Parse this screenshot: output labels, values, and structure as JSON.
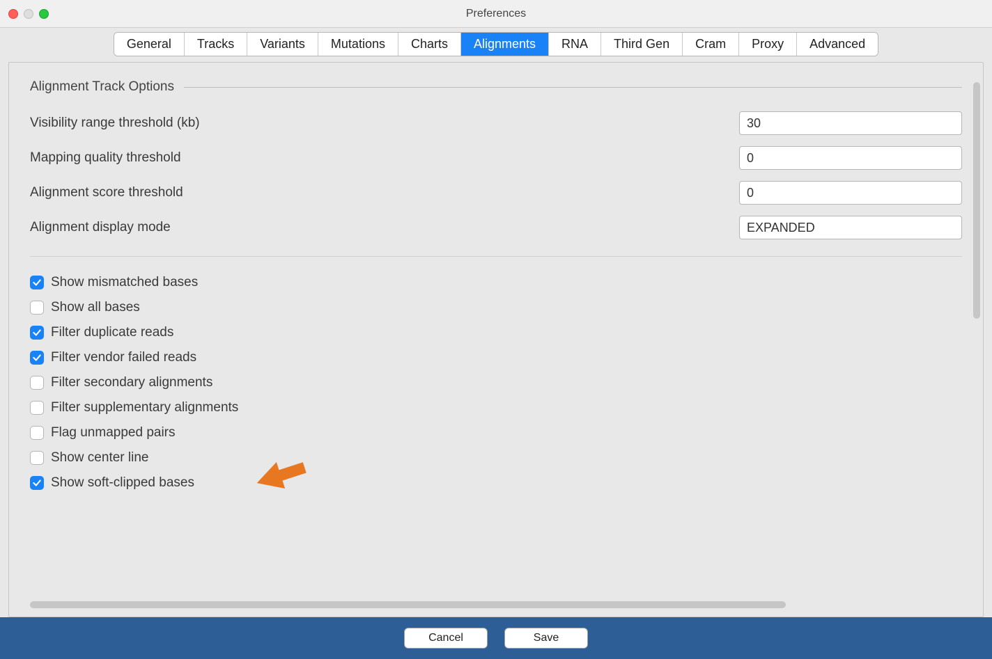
{
  "window": {
    "title": "Preferences"
  },
  "tabs": [
    {
      "label": "General",
      "active": false
    },
    {
      "label": "Tracks",
      "active": false
    },
    {
      "label": "Variants",
      "active": false
    },
    {
      "label": "Mutations",
      "active": false
    },
    {
      "label": "Charts",
      "active": false
    },
    {
      "label": "Alignments",
      "active": true
    },
    {
      "label": "RNA",
      "active": false
    },
    {
      "label": "Third Gen",
      "active": false
    },
    {
      "label": "Cram",
      "active": false
    },
    {
      "label": "Proxy",
      "active": false
    },
    {
      "label": "Advanced",
      "active": false
    }
  ],
  "section": {
    "title": "Alignment Track Options"
  },
  "fields": {
    "visibility": {
      "label": "Visibility range threshold (kb)",
      "value": "30"
    },
    "mapq": {
      "label": "Mapping quality threshold",
      "value": "0"
    },
    "score": {
      "label": "Alignment score threshold",
      "value": "0"
    },
    "display_mode": {
      "label": "Alignment display mode",
      "value": "EXPANDED"
    }
  },
  "checkboxes": [
    {
      "label": "Show mismatched bases",
      "checked": true
    },
    {
      "label": "Show all bases",
      "checked": false
    },
    {
      "label": "Filter duplicate reads",
      "checked": true
    },
    {
      "label": "Filter vendor failed reads",
      "checked": true
    },
    {
      "label": "Filter secondary alignments",
      "checked": false
    },
    {
      "label": "Filter supplementary alignments",
      "checked": false
    },
    {
      "label": "Flag unmapped pairs",
      "checked": false
    },
    {
      "label": "Show center line",
      "checked": false
    },
    {
      "label": "Show soft-clipped bases",
      "checked": true
    }
  ],
  "annotation": {
    "arrow_color": "#e87722",
    "arrow_target_index": 8
  },
  "footer": {
    "cancel": "Cancel",
    "save": "Save",
    "bg": "#2d5f96"
  },
  "colors": {
    "accent": "#1a82f7"
  }
}
